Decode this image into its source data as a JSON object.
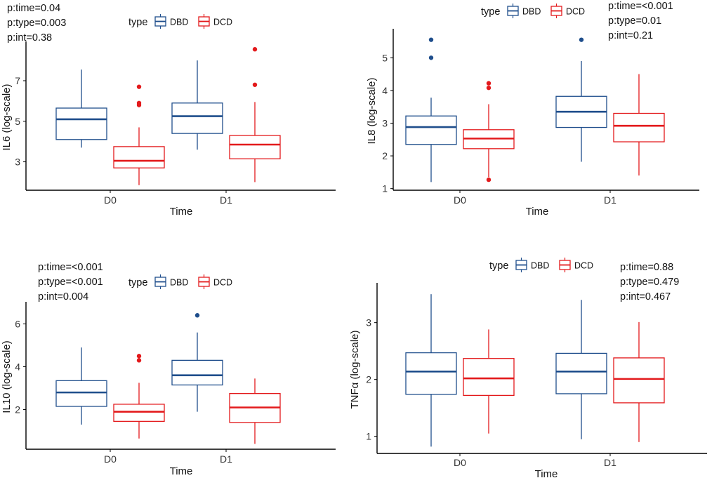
{
  "colors": {
    "DBD": "#1f4e8c",
    "DCD": "#e31a1c",
    "axis": "#000000",
    "tick": "#333333"
  },
  "chart_data": [
    {
      "type": "boxplot",
      "ylabel": "IL6 (log-scale)",
      "xlabel": "Time",
      "categories": [
        "D0",
        "D1"
      ],
      "yticks": [
        3,
        5,
        7
      ],
      "ylim": [
        1.6,
        8.8
      ],
      "legend": {
        "title": "type",
        "entries": [
          "DBD",
          "DCD"
        ],
        "placement": "top"
      },
      "stats": [
        "p:time=0.04",
        "p:type=0.003",
        "p:int=0.38"
      ],
      "stats_placement": "top-left",
      "series": [
        {
          "name": "DBD",
          "boxes": [
            {
              "category": "D0",
              "min": 3.7,
              "q1": 4.1,
              "median": 5.1,
              "q3": 5.65,
              "max": 7.55,
              "outliers": []
            },
            {
              "category": "D1",
              "min": 3.6,
              "q1": 4.4,
              "median": 5.25,
              "q3": 5.9,
              "max": 8.0,
              "outliers": []
            }
          ]
        },
        {
          "name": "DCD",
          "boxes": [
            {
              "category": "D0",
              "min": 1.85,
              "q1": 2.7,
              "median": 3.05,
              "q3": 3.75,
              "max": 4.7,
              "outliers": [
                5.8,
                5.9,
                6.7
              ]
            },
            {
              "category": "D1",
              "min": 2.0,
              "q1": 3.15,
              "median": 3.85,
              "q3": 4.3,
              "max": 5.95,
              "outliers": [
                6.8,
                8.55
              ]
            }
          ]
        }
      ]
    },
    {
      "type": "boxplot",
      "ylabel": "IL8 (log-scale)",
      "xlabel": "Time",
      "categories": [
        "D0",
        "D1"
      ],
      "yticks": [
        1,
        2,
        3,
        4,
        5
      ],
      "ylim": [
        0.95,
        5.8
      ],
      "legend": {
        "title": "type",
        "entries": [
          "DBD",
          "DCD"
        ],
        "placement": "top"
      },
      "stats": [
        "p:time=<0.001",
        "p:type=0.01",
        "p:int=0.21"
      ],
      "stats_placement": "top-right",
      "series": [
        {
          "name": "DBD",
          "boxes": [
            {
              "category": "D0",
              "min": 1.2,
              "q1": 2.35,
              "median": 2.88,
              "q3": 3.22,
              "max": 3.78,
              "outliers": [
                5.0,
                5.55
              ]
            },
            {
              "category": "D1",
              "min": 1.82,
              "q1": 2.87,
              "median": 3.35,
              "q3": 3.82,
              "max": 4.9,
              "outliers": [
                5.55
              ]
            }
          ]
        },
        {
          "name": "DCD",
          "boxes": [
            {
              "category": "D0",
              "min": 1.35,
              "q1": 2.22,
              "median": 2.53,
              "q3": 2.8,
              "max": 3.58,
              "outliers": [
                1.27,
                4.08,
                4.22
              ]
            },
            {
              "category": "D1",
              "min": 1.4,
              "q1": 2.43,
              "median": 2.92,
              "q3": 3.3,
              "max": 4.5,
              "outliers": []
            }
          ]
        }
      ]
    },
    {
      "type": "boxplot",
      "ylabel": "IL10 (log-scale)",
      "xlabel": "Time",
      "categories": [
        "D0",
        "D1"
      ],
      "yticks": [
        2,
        4,
        6
      ],
      "ylim": [
        0.15,
        6.9
      ],
      "legend": {
        "title": "type",
        "entries": [
          "DBD",
          "DCD"
        ],
        "placement": "top"
      },
      "stats": [
        "p:time=<0.001",
        "p:type=<0.001",
        "p:int=0.004"
      ],
      "stats_placement": "top-left",
      "series": [
        {
          "name": "DBD",
          "boxes": [
            {
              "category": "D0",
              "min": 1.3,
              "q1": 2.15,
              "median": 2.8,
              "q3": 3.35,
              "max": 4.9,
              "outliers": []
            },
            {
              "category": "D1",
              "min": 1.9,
              "q1": 3.15,
              "median": 3.6,
              "q3": 4.3,
              "max": 5.6,
              "outliers": [
                6.4
              ]
            }
          ]
        },
        {
          "name": "DCD",
          "boxes": [
            {
              "category": "D0",
              "min": 0.65,
              "q1": 1.45,
              "median": 1.9,
              "q3": 2.25,
              "max": 3.25,
              "outliers": [
                4.3,
                4.5
              ]
            },
            {
              "category": "D1",
              "min": 0.4,
              "q1": 1.4,
              "median": 2.1,
              "q3": 2.75,
              "max": 3.45,
              "outliers": []
            }
          ]
        }
      ]
    },
    {
      "type": "boxplot",
      "ylabel": "TNFα (log-scale)",
      "xlabel": "Time",
      "categories": [
        "D0",
        "D1"
      ],
      "yticks": [
        1,
        2,
        3
      ],
      "ylim": [
        0.7,
        3.65
      ],
      "legend": {
        "title": "type",
        "entries": [
          "DBD",
          "DCD"
        ],
        "placement": "top"
      },
      "stats": [
        "p:time=0.88",
        "p:type=0.479",
        "p:int=0.467"
      ],
      "stats_placement": "top-right",
      "series": [
        {
          "name": "DBD",
          "boxes": [
            {
              "category": "D0",
              "min": 0.82,
              "q1": 1.74,
              "median": 2.14,
              "q3": 2.47,
              "max": 3.5,
              "outliers": []
            },
            {
              "category": "D1",
              "min": 0.95,
              "q1": 1.75,
              "median": 2.14,
              "q3": 2.46,
              "max": 3.4,
              "outliers": []
            }
          ]
        },
        {
          "name": "DCD",
          "boxes": [
            {
              "category": "D0",
              "min": 1.05,
              "q1": 1.72,
              "median": 2.02,
              "q3": 2.37,
              "max": 2.88,
              "outliers": []
            },
            {
              "category": "D1",
              "min": 0.9,
              "q1": 1.59,
              "median": 2.01,
              "q3": 2.38,
              "max": 3.01,
              "outliers": []
            }
          ]
        }
      ]
    }
  ]
}
